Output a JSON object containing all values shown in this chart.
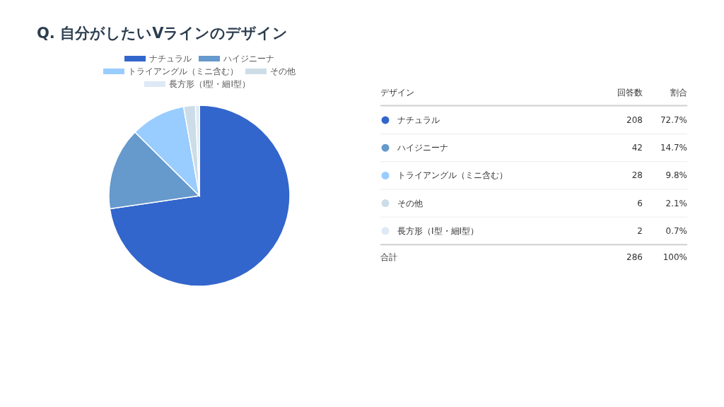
{
  "chart_data": [
    {
      "type": "pie",
      "title": "Q. 自分がしたいVラインのデザイン",
      "categories": [
        "ナチュラル",
        "ハイジニーナ",
        "トライアングル（ミニ含む）",
        "その他",
        "長方形（I型・細I型）"
      ],
      "values": [
        72.7,
        14.7,
        9.8,
        2.1,
        0.7
      ],
      "colors": [
        "#3366cc",
        "#6699cc",
        "#99ccff",
        "#ccdde8",
        "#dde9f5"
      ],
      "legend": "top"
    },
    {
      "type": "other",
      "xlabel": "デザイン",
      "categories": [
        "ナチュラル",
        "ハイジニーナ",
        "トライアングル（ミニ含む）",
        "その他",
        "長方形（I型・細I型）"
      ],
      "colors": [
        "#3366cc",
        "#6699cc",
        "#99ccff",
        "#ccdde8",
        "#dde9f5"
      ],
      "series": [
        {
          "name": "回答数",
          "values": [
            208,
            42,
            28,
            6,
            2
          ]
        },
        {
          "name": "割合",
          "values": [
            72.7,
            14.7,
            9.8,
            2.1,
            0.7
          ],
          "value_labels": [
            "72.7%",
            "14.7%",
            "9.8%",
            "2.1%",
            "0.7%"
          ]
        }
      ],
      "data_labels": true,
      "totals": [
        "286",
        "100%"
      ],
      "annotations": [
        "合計"
      ]
    }
  ]
}
